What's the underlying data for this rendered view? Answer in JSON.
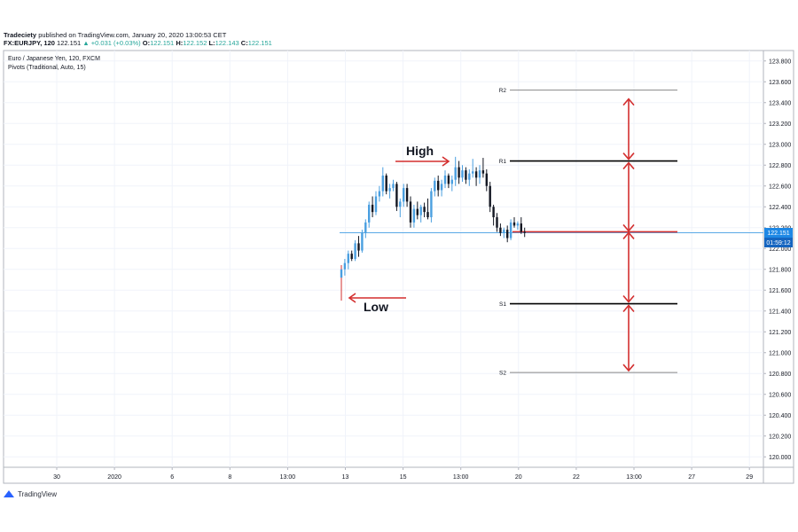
{
  "header": {
    "publisher": "Tradeciety",
    "published_on": "published on TradingView.com, January 20, 2020 13:00:53 CET",
    "symbol": "FX:EURJPY, 120",
    "last": "122.151",
    "change": "+0.031 (+0.03%)",
    "o_label": "O:",
    "o_value": "122.151",
    "h_label": "H:",
    "h_value": "122.152",
    "l_label": "L:",
    "l_value": "122.143",
    "c_label": "C:",
    "c_value": "122.151"
  },
  "legend": {
    "title": "Euro / Japanese Yen, 120, FXCM",
    "indicator": "Pivots (Traditional, Auto, 15)"
  },
  "footer": {
    "brand": "TradingView"
  },
  "colors": {
    "up": "#4a9fe0",
    "down": "#131722",
    "pivot_main": "#000000",
    "pivot_outer": "#888888",
    "annotation": "#d32f2f",
    "price_line": "#5aa9e6",
    "price_badge": "#1e88e5"
  },
  "chart_data": {
    "type": "candlestick",
    "x_ticks": [
      "30",
      "2020",
      "6",
      "8",
      "13:00",
      "13",
      "15",
      "13:00",
      "20",
      "22",
      "13:00",
      "27",
      "29"
    ],
    "y_ticks": [
      "123.800",
      "123.600",
      "123.400",
      "123.200",
      "123.000",
      "122.800",
      "122.600",
      "122.400",
      "122.200",
      "122.000",
      "121.800",
      "121.600",
      "121.400",
      "121.200",
      "121.000",
      "120.800",
      "120.600",
      "120.400",
      "120.200",
      "120.000"
    ],
    "ylim": [
      119.9,
      123.9
    ],
    "current_price": "122.151",
    "countdown": "01:59:12",
    "pivots": [
      {
        "name": "R2",
        "value": 123.52
      },
      {
        "name": "R1",
        "value": 122.84
      },
      {
        "name": "P",
        "value": 122.16
      },
      {
        "name": "S1",
        "value": 121.47
      },
      {
        "name": "S2",
        "value": 120.81
      }
    ],
    "annotations": {
      "high": "High",
      "low": "Low"
    },
    "candles": [
      [
        121.72,
        121.84,
        121.5,
        121.8
      ],
      [
        121.8,
        121.9,
        121.74,
        121.86
      ],
      [
        121.86,
        121.98,
        121.8,
        121.95
      ],
      [
        121.95,
        121.98,
        121.88,
        121.9
      ],
      [
        121.9,
        122.08,
        121.88,
        122.05
      ],
      [
        122.05,
        122.12,
        121.92,
        121.98
      ],
      [
        121.98,
        122.18,
        121.96,
        122.15
      ],
      [
        122.15,
        122.28,
        122.1,
        122.25
      ],
      [
        122.25,
        122.45,
        122.2,
        122.42
      ],
      [
        122.42,
        122.5,
        122.3,
        122.35
      ],
      [
        122.35,
        122.55,
        122.32,
        122.5
      ],
      [
        122.5,
        122.6,
        122.45,
        122.55
      ],
      [
        122.55,
        122.78,
        122.5,
        122.7
      ],
      [
        122.7,
        122.72,
        122.52,
        122.55
      ],
      [
        122.55,
        122.62,
        122.48,
        122.58
      ],
      [
        122.58,
        122.66,
        122.55,
        122.62
      ],
      [
        122.62,
        122.64,
        122.36,
        122.4
      ],
      [
        122.4,
        122.48,
        122.3,
        122.45
      ],
      [
        122.45,
        122.62,
        122.4,
        122.58
      ],
      [
        122.58,
        122.62,
        122.4,
        122.45
      ],
      [
        122.45,
        122.5,
        122.2,
        122.25
      ],
      [
        122.25,
        122.42,
        122.2,
        122.38
      ],
      [
        122.38,
        122.45,
        122.28,
        122.32
      ],
      [
        122.32,
        122.42,
        122.25,
        122.4
      ],
      [
        122.4,
        122.44,
        122.3,
        122.35
      ],
      [
        122.35,
        122.48,
        122.28,
        122.3
      ],
      [
        122.3,
        122.58,
        122.25,
        122.55
      ],
      [
        122.55,
        122.68,
        122.5,
        122.65
      ],
      [
        122.65,
        122.7,
        122.5,
        122.56
      ],
      [
        122.56,
        122.66,
        122.5,
        122.62
      ],
      [
        122.62,
        122.75,
        122.58,
        122.7
      ],
      [
        122.7,
        122.72,
        122.58,
        122.62
      ],
      [
        122.62,
        122.7,
        122.55,
        122.66
      ],
      [
        122.66,
        122.88,
        122.6,
        122.78
      ],
      [
        122.78,
        122.84,
        122.62,
        122.68
      ],
      [
        122.68,
        122.8,
        122.64,
        122.75
      ],
      [
        122.75,
        122.78,
        122.62,
        122.66
      ],
      [
        122.66,
        122.76,
        122.6,
        122.72
      ],
      [
        122.72,
        122.86,
        122.68,
        122.74
      ],
      [
        122.74,
        122.78,
        122.6,
        122.68
      ],
      [
        122.68,
        122.8,
        122.62,
        122.75
      ],
      [
        122.75,
        122.87,
        122.68,
        122.72
      ],
      [
        122.72,
        122.76,
        122.55,
        122.6
      ],
      [
        122.6,
        122.64,
        122.35,
        122.4
      ],
      [
        122.4,
        122.42,
        122.22,
        122.3
      ],
      [
        122.3,
        122.34,
        122.16,
        122.2
      ],
      [
        122.2,
        122.24,
        122.12,
        122.15
      ],
      [
        122.15,
        122.2,
        122.1,
        122.18
      ],
      [
        122.18,
        122.22,
        122.06,
        122.1
      ],
      [
        122.1,
        122.28,
        122.08,
        122.25
      ],
      [
        122.25,
        122.3,
        122.2,
        122.22
      ],
      [
        122.22,
        122.26,
        122.18,
        122.24
      ],
      [
        122.24,
        122.3,
        122.14,
        122.16
      ],
      [
        122.16,
        122.2,
        122.11,
        122.15
      ]
    ]
  }
}
